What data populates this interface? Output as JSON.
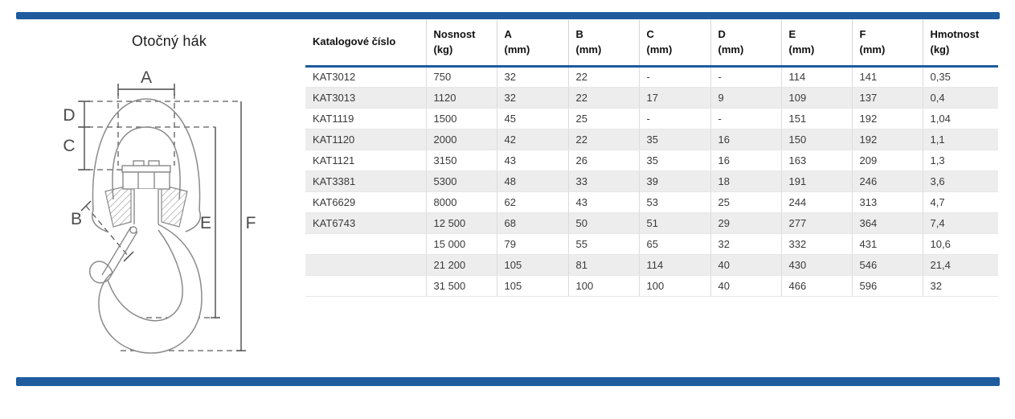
{
  "accent_color": "#1e5c9e",
  "diagram": {
    "title": "Otočný hák",
    "dimension_labels": [
      "A",
      "B",
      "C",
      "D",
      "E",
      "F"
    ]
  },
  "table": {
    "columns": [
      "Katalogové číslo",
      "Nosnost\n(kg)",
      "A\n(mm)",
      "B\n(mm)",
      "C\n(mm)",
      "D\n(mm)",
      "E\n(mm)",
      "F\n(mm)",
      "Hmotnost\n(kg)"
    ],
    "rows": [
      [
        "KAT3012",
        "750",
        "32",
        "22",
        "-",
        "-",
        "114",
        "141",
        "0,35"
      ],
      [
        "KAT3013",
        "1120",
        "32",
        "22",
        "17",
        "9",
        "109",
        "137",
        "0,4"
      ],
      [
        "KAT1119",
        "1500",
        "45",
        "25",
        "-",
        "-",
        "151",
        "192",
        "1,04"
      ],
      [
        "KAT1120",
        "2000",
        "42",
        "22",
        "35",
        "16",
        "150",
        "192",
        "1,1"
      ],
      [
        "KAT1121",
        "3150",
        "43",
        "26",
        "35",
        "16",
        "163",
        "209",
        "1,3"
      ],
      [
        "KAT3381",
        "5300",
        "48",
        "33",
        "39",
        "18",
        "191",
        "246",
        "3,6"
      ],
      [
        "KAT6629",
        "8000",
        "62",
        "43",
        "53",
        "25",
        "244",
        "313",
        "4,7"
      ],
      [
        "KAT6743",
        "12 500",
        "68",
        "50",
        "51",
        "29",
        "277",
        "364",
        "7,4"
      ],
      [
        "",
        "15 000",
        "79",
        "55",
        "65",
        "32",
        "332",
        "431",
        "10,6"
      ],
      [
        "",
        "21 200",
        "105",
        "81",
        "114",
        "40",
        "430",
        "546",
        "21,4"
      ],
      [
        "",
        "31 500",
        "105",
        "100",
        "100",
        "40",
        "466",
        "596",
        "32"
      ]
    ]
  }
}
